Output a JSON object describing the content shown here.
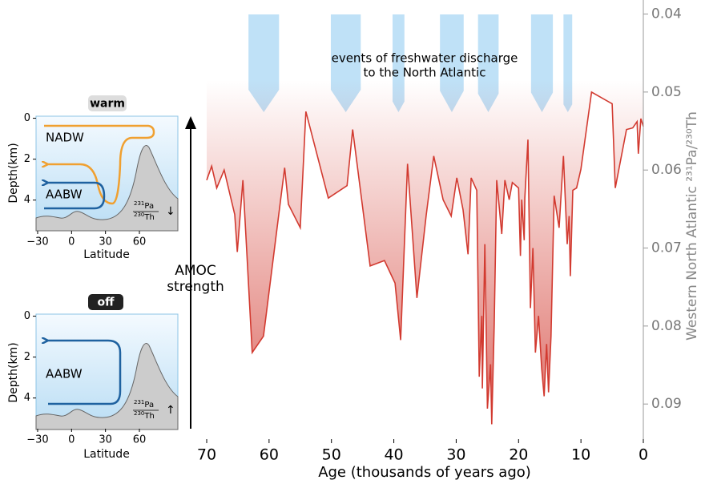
{
  "chart_data": {
    "type": "line",
    "xlabel": "Age (thousands of years ago)",
    "ylabel": "Western North Atlantic ²³¹Pa/²³⁰Th",
    "x": [
      70,
      69.2,
      68.4,
      67.2,
      65.5,
      65.1,
      64.2,
      62.7,
      60.9,
      57.5,
      56.9,
      55.0,
      54.1,
      50.5,
      47.5,
      46.6,
      43.8,
      41.5,
      39.8,
      38.9,
      37.8,
      36.3,
      34.8,
      33.6,
      32.1,
      30.8,
      29.9,
      28.9,
      28.1,
      27.6,
      26.7,
      26.3,
      25.9,
      25.8,
      25.4,
      25.0,
      24.5,
      24.3,
      23.9,
      23.5,
      22.7,
      22.2,
      21.5,
      21.0,
      20.0,
      19.7,
      19.5,
      19.1,
      19.0,
      18.5,
      18.1,
      17.7,
      17.3,
      16.8,
      16.3,
      15.9,
      15.5,
      15.2,
      14.8,
      14.3,
      13.5,
      12.8,
      12.2,
      11.9,
      11.7,
      11.3,
      10.7,
      10.0,
      8.3,
      5.0,
      4.5,
      2.7,
      1.7,
      1.0,
      0.8,
      0.4,
      0
    ],
    "values": [
      0.0613,
      0.0595,
      0.0623,
      0.06,
      0.0657,
      0.0705,
      0.0613,
      0.0834,
      0.0813,
      0.0597,
      0.0644,
      0.0674,
      0.0525,
      0.0636,
      0.062,
      0.0548,
      0.0723,
      0.0716,
      0.0745,
      0.0818,
      0.0592,
      0.0764,
      0.0657,
      0.0582,
      0.0638,
      0.0659,
      0.061,
      0.0651,
      0.0708,
      0.061,
      0.0626,
      0.0865,
      0.0787,
      0.088,
      0.0695,
      0.0906,
      0.0849,
      0.0926,
      0.0798,
      0.0613,
      0.0682,
      0.0613,
      0.0638,
      0.0616,
      0.0623,
      0.071,
      0.0638,
      0.069,
      0.0636,
      0.0561,
      0.0777,
      0.07,
      0.0834,
      0.0787,
      0.0854,
      0.089,
      0.0823,
      0.0885,
      0.0813,
      0.0633,
      0.0674,
      0.0582,
      0.0695,
      0.0659,
      0.0736,
      0.0626,
      0.0623,
      0.0599,
      0.05,
      0.0515,
      0.0623,
      0.0548,
      0.0546,
      0.0538,
      0.0579,
      0.0534,
      0.0544
    ],
    "color": "#d23a30",
    "xlim": [
      70,
      0
    ],
    "xticks": [
      70,
      60,
      50,
      40,
      30,
      20,
      10,
      0
    ],
    "ylim": [
      0.0382,
      0.0945
    ],
    "y_inverted": true,
    "y_axis_side": "right",
    "yticks": [
      0.04,
      0.05,
      0.06,
      0.07,
      0.08,
      0.09
    ],
    "annotation": [
      "events of freshwater discharge",
      "to the North Atlantic"
    ],
    "events": [
      [
        63.3,
        58.4
      ],
      [
        50.1,
        45.3
      ],
      [
        40.2,
        38.3
      ],
      [
        32.6,
        28.8
      ],
      [
        26.5,
        23.2
      ],
      [
        18.0,
        14.5
      ],
      [
        12.8,
        11.4
      ]
    ],
    "event_color": "#bfe1f7",
    "arrow_label": [
      "AMOC",
      "strength"
    ]
  },
  "insets": [
    {
      "badge": "warm",
      "ylabel": "Depth(km)",
      "xlabel": "Latitude",
      "xlim": [
        -31.4,
        94
      ],
      "ylim": [
        -0.1,
        5.5
      ],
      "xticks": [
        {
          "value": -30,
          "label": "−30"
        },
        0,
        30,
        60
      ],
      "yticks": [
        0,
        2,
        4
      ],
      "water_masses": [
        "NADW",
        "AABW"
      ],
      "tracer": {
        "num_mass": "231",
        "num_element": "Pa",
        "den_mass": "230",
        "den_element": "Th",
        "trend": "↓"
      }
    },
    {
      "badge": "off",
      "ylabel": "Depth(km)",
      "xlabel": "Latitude",
      "xlim": [
        -31.4,
        94
      ],
      "ylim": [
        -0.1,
        5.5
      ],
      "xticks": [
        {
          "value": -30,
          "label": "−30"
        },
        0,
        30,
        60
      ],
      "yticks": [
        0,
        2,
        4
      ],
      "water_masses": [
        "AABW"
      ],
      "tracer": {
        "num_mass": "231",
        "num_element": "Pa",
        "den_mass": "230",
        "den_element": "Th",
        "trend": "↑"
      }
    }
  ]
}
